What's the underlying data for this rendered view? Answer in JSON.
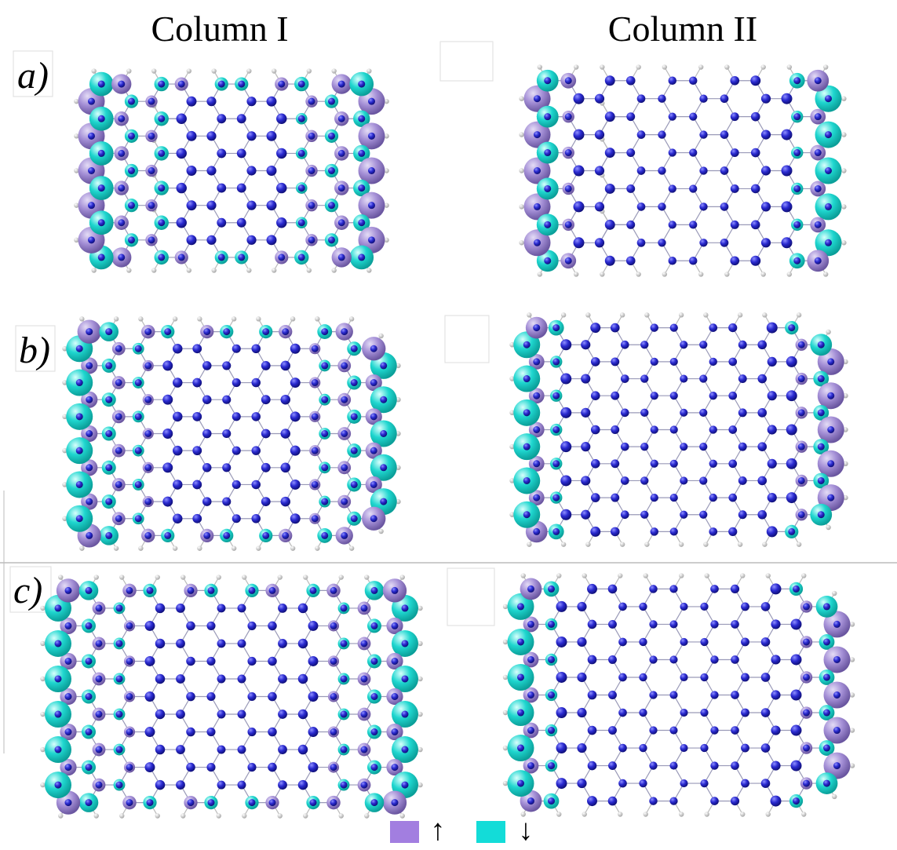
{
  "header": {
    "columns": [
      "Column I",
      "Column II"
    ]
  },
  "panels": [
    {
      "label": "a)"
    },
    {
      "label": "b)"
    },
    {
      "label": "c)"
    }
  ],
  "legend": [
    {
      "label": "↑"
    },
    {
      "label": "↓"
    }
  ]
}
